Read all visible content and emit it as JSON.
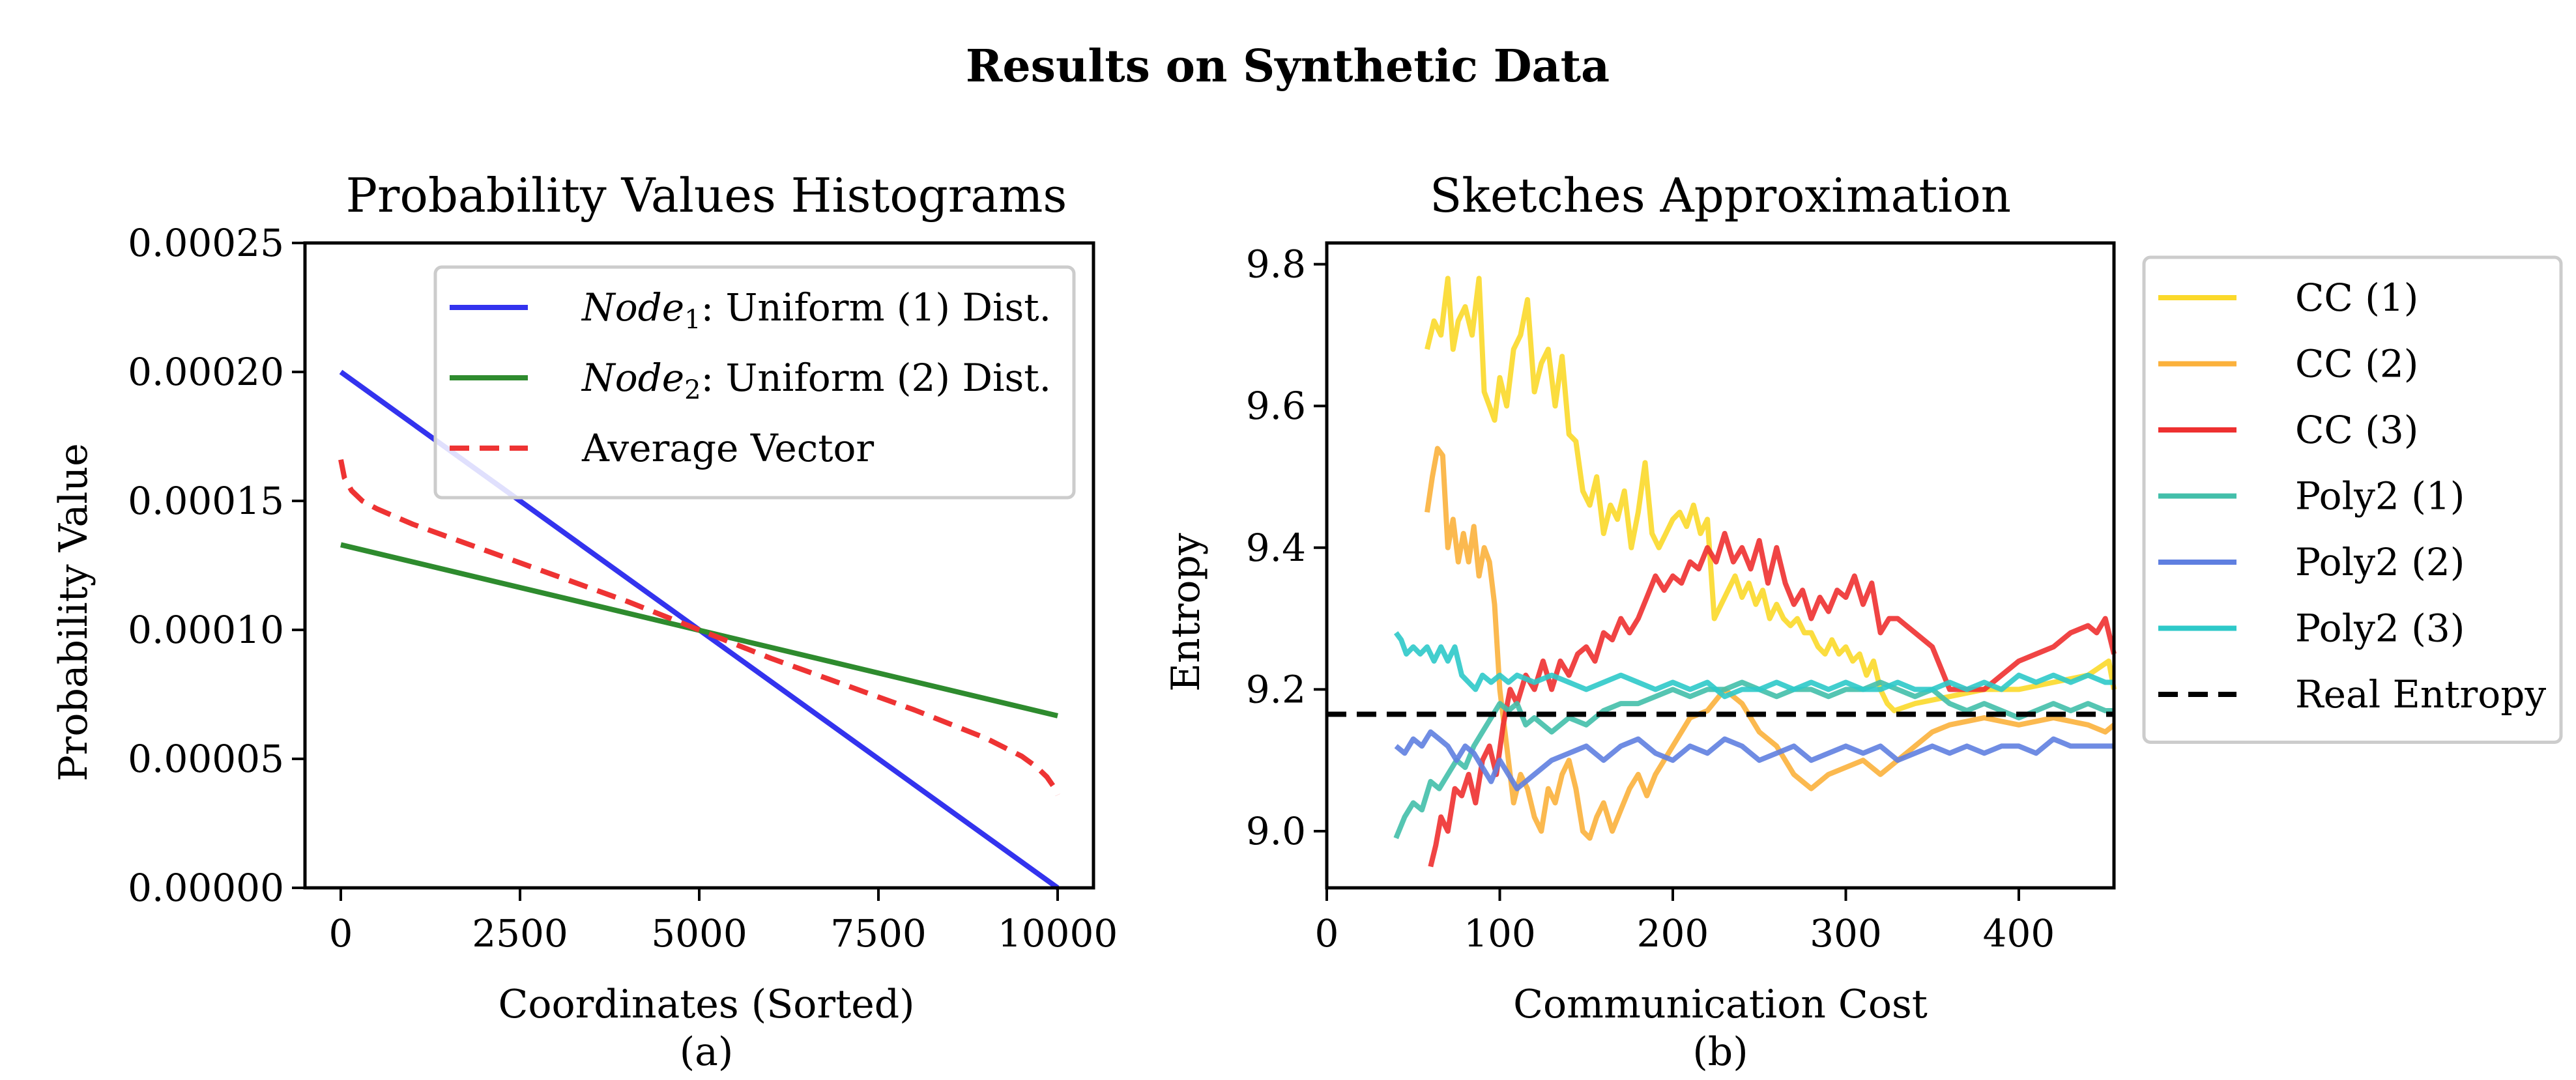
{
  "figure": {
    "suptitle": "Results on Synthetic Data"
  },
  "chart_data": [
    {
      "type": "line",
      "id": "a",
      "title": "Probability Values Histograms",
      "xlabel": "Coordinates (Sorted)",
      "ylabel": "Probability Value",
      "panel_label": "(a)",
      "xlim": [
        -500,
        10500
      ],
      "ylim": [
        0,
        0.00025
      ],
      "xticks": [
        0,
        2500,
        5000,
        7500,
        10000
      ],
      "xtick_labels": [
        "0",
        "2500",
        "5000",
        "7500",
        "10000"
      ],
      "yticks": [
        0,
        5e-05,
        0.0001,
        0.00015,
        0.0002,
        0.00025
      ],
      "ytick_labels": [
        "0.00000",
        "0.00005",
        "0.00010",
        "0.00015",
        "0.00020",
        "0.00025"
      ],
      "legend_position": "top-right",
      "series": [
        {
          "name": "Node₁: Uniform (1) Dist.",
          "legend_italic": "Node",
          "legend_sub": "1",
          "legend_rest": ": Uniform (1) Dist.",
          "color": "#3333ee",
          "dash": "solid",
          "x": [
            0,
            10000
          ],
          "y": [
            0.0002,
            0.0
          ]
        },
        {
          "name": "Node₂: Uniform (2) Dist.",
          "legend_italic": "Node",
          "legend_sub": "2",
          "legend_rest": ": Uniform (2) Dist.",
          "color": "#2e8b2e",
          "dash": "solid",
          "x": [
            0,
            10000
          ],
          "y": [
            0.000133,
            6.67e-05
          ]
        },
        {
          "name": "Average Vector",
          "legend_italic": "",
          "legend_sub": "",
          "legend_rest": "Average Vector",
          "color": "#ee3333",
          "dash": "dashed",
          "x": [
            0,
            50,
            150,
            300,
            500,
            1000,
            2000,
            3000,
            4000,
            5000,
            6000,
            7000,
            8000,
            9000,
            9500,
            9700,
            9850,
            9950,
            10000
          ],
          "y": [
            0.000166,
            0.000159,
            0.000154,
            0.00015,
            0.000147,
            0.000141,
            0.000131,
            0.000121,
            0.000111,
            0.0001,
            8.9e-05,
            7.9e-05,
            6.9e-05,
            5.8e-05,
            5.1e-05,
            4.7e-05,
            4.3e-05,
            3.9e-05,
            3.6e-05
          ]
        }
      ]
    },
    {
      "type": "line",
      "id": "b",
      "title": "Sketches Approximation",
      "xlabel": "Communication Cost",
      "ylabel": "Entropy",
      "panel_label": "(b)",
      "xlim": [
        0,
        455
      ],
      "ylim": [
        8.92,
        9.83
      ],
      "xticks": [
        0,
        100,
        200,
        300,
        400
      ],
      "xtick_labels": [
        "0",
        "100",
        "200",
        "300",
        "400"
      ],
      "yticks": [
        9.0,
        9.2,
        9.4,
        9.6,
        9.8
      ],
      "ytick_labels": [
        "9.0",
        "9.2",
        "9.4",
        "9.6",
        "9.8"
      ],
      "legend_position": "outside-right",
      "series": [
        {
          "name": "CC (1)",
          "color": "#fbd92a",
          "dash": "solid",
          "x": [
            58,
            62,
            66,
            70,
            73,
            76,
            80,
            84,
            88,
            91,
            94,
            97,
            100,
            104,
            108,
            112,
            116,
            120,
            124,
            128,
            132,
            136,
            140,
            144,
            148,
            152,
            156,
            160,
            164,
            168,
            172,
            176,
            180,
            184,
            188,
            192,
            196,
            200,
            204,
            208,
            212,
            216,
            220,
            224,
            228,
            232,
            236,
            240,
            244,
            248,
            252,
            256,
            260,
            264,
            268,
            272,
            276,
            280,
            284,
            288,
            292,
            296,
            300,
            304,
            308,
            312,
            316,
            320,
            324,
            328,
            340,
            360,
            380,
            400,
            420,
            440,
            452,
            455
          ],
          "y": [
            9.68,
            9.72,
            9.7,
            9.78,
            9.68,
            9.72,
            9.74,
            9.7,
            9.78,
            9.62,
            9.6,
            9.58,
            9.64,
            9.6,
            9.68,
            9.7,
            9.75,
            9.62,
            9.66,
            9.68,
            9.6,
            9.67,
            9.56,
            9.55,
            9.48,
            9.46,
            9.5,
            9.42,
            9.46,
            9.44,
            9.48,
            9.4,
            9.45,
            9.52,
            9.42,
            9.4,
            9.42,
            9.44,
            9.45,
            9.43,
            9.46,
            9.42,
            9.44,
            9.3,
            9.32,
            9.34,
            9.36,
            9.33,
            9.35,
            9.32,
            9.34,
            9.3,
            9.32,
            9.3,
            9.29,
            9.3,
            9.28,
            9.28,
            9.26,
            9.25,
            9.27,
            9.25,
            9.26,
            9.24,
            9.25,
            9.22,
            9.24,
            9.2,
            9.18,
            9.17,
            9.18,
            9.19,
            9.2,
            9.2,
            9.21,
            9.22,
            9.24,
            9.2
          ]
        },
        {
          "name": "CC (2)",
          "color": "#fbb13c",
          "dash": "solid",
          "x": [
            58,
            61,
            64,
            67,
            70,
            73,
            76,
            79,
            82,
            85,
            88,
            91,
            94,
            97,
            100,
            104,
            108,
            112,
            116,
            120,
            124,
            128,
            132,
            136,
            140,
            144,
            148,
            152,
            156,
            160,
            165,
            170,
            175,
            180,
            185,
            190,
            200,
            210,
            220,
            230,
            240,
            250,
            260,
            270,
            280,
            290,
            300,
            310,
            320,
            330,
            340,
            350,
            360,
            380,
            400,
            420,
            440,
            450,
            455
          ],
          "y": [
            9.45,
            9.5,
            9.54,
            9.53,
            9.4,
            9.44,
            9.38,
            9.42,
            9.38,
            9.43,
            9.36,
            9.4,
            9.38,
            9.32,
            9.2,
            9.12,
            9.04,
            9.08,
            9.06,
            9.02,
            9.0,
            9.06,
            9.04,
            9.08,
            9.1,
            9.06,
            9.0,
            8.99,
            9.02,
            9.04,
            9.0,
            9.03,
            9.06,
            9.08,
            9.05,
            9.08,
            9.12,
            9.16,
            9.17,
            9.2,
            9.18,
            9.14,
            9.12,
            9.08,
            9.06,
            9.08,
            9.09,
            9.1,
            9.08,
            9.1,
            9.12,
            9.14,
            9.15,
            9.16,
            9.15,
            9.16,
            9.15,
            9.14,
            9.15
          ]
        },
        {
          "name": "CC (3)",
          "color": "#ee3030",
          "dash": "solid",
          "x": [
            60,
            63,
            66,
            70,
            74,
            78,
            82,
            86,
            90,
            94,
            98,
            102,
            106,
            110,
            115,
            120,
            125,
            130,
            135,
            140,
            145,
            150,
            155,
            160,
            165,
            170,
            175,
            180,
            185,
            190,
            195,
            200,
            205,
            210,
            215,
            220,
            225,
            230,
            235,
            240,
            245,
            250,
            255,
            260,
            265,
            270,
            275,
            280,
            285,
            290,
            295,
            300,
            305,
            310,
            315,
            320,
            325,
            330,
            340,
            350,
            360,
            370,
            380,
            390,
            400,
            410,
            420,
            430,
            440,
            445,
            450,
            455
          ],
          "y": [
            8.95,
            8.98,
            9.02,
            9.0,
            9.06,
            9.05,
            9.08,
            9.04,
            9.1,
            9.12,
            9.08,
            9.15,
            9.2,
            9.18,
            9.22,
            9.2,
            9.24,
            9.2,
            9.24,
            9.22,
            9.25,
            9.26,
            9.24,
            9.28,
            9.27,
            9.3,
            9.28,
            9.3,
            9.33,
            9.36,
            9.34,
            9.36,
            9.35,
            9.38,
            9.37,
            9.4,
            9.38,
            9.42,
            9.38,
            9.4,
            9.37,
            9.41,
            9.35,
            9.4,
            9.35,
            9.32,
            9.34,
            9.3,
            9.33,
            9.31,
            9.34,
            9.33,
            9.36,
            9.32,
            9.35,
            9.28,
            9.3,
            9.3,
            9.28,
            9.26,
            9.2,
            9.2,
            9.2,
            9.22,
            9.24,
            9.25,
            9.26,
            9.28,
            9.29,
            9.28,
            9.3,
            9.25
          ]
        },
        {
          "name": "Poly2 (1)",
          "color": "#43bfaa",
          "dash": "solid",
          "x": [
            40,
            45,
            50,
            55,
            60,
            65,
            70,
            75,
            80,
            85,
            90,
            95,
            100,
            105,
            110,
            115,
            120,
            130,
            140,
            150,
            160,
            170,
            180,
            190,
            200,
            210,
            220,
            230,
            240,
            250,
            260,
            270,
            280,
            290,
            300,
            310,
            320,
            330,
            340,
            350,
            360,
            370,
            380,
            390,
            400,
            410,
            420,
            430,
            440,
            450,
            455
          ],
          "y": [
            8.99,
            9.02,
            9.04,
            9.03,
            9.07,
            9.06,
            9.08,
            9.1,
            9.09,
            9.12,
            9.14,
            9.16,
            9.18,
            9.17,
            9.18,
            9.15,
            9.16,
            9.14,
            9.16,
            9.15,
            9.17,
            9.18,
            9.18,
            9.19,
            9.2,
            9.19,
            9.2,
            9.2,
            9.21,
            9.2,
            9.19,
            9.2,
            9.2,
            9.19,
            9.2,
            9.2,
            9.21,
            9.2,
            9.19,
            9.2,
            9.18,
            9.17,
            9.18,
            9.17,
            9.16,
            9.17,
            9.18,
            9.17,
            9.18,
            9.17,
            9.17
          ]
        },
        {
          "name": "Poly2 (2)",
          "color": "#5f7fe0",
          "dash": "solid",
          "x": [
            40,
            45,
            50,
            55,
            60,
            65,
            70,
            75,
            80,
            85,
            90,
            95,
            100,
            105,
            110,
            115,
            120,
            130,
            140,
            150,
            160,
            170,
            180,
            190,
            200,
            210,
            220,
            230,
            240,
            250,
            260,
            270,
            280,
            290,
            300,
            310,
            320,
            330,
            340,
            350,
            360,
            370,
            380,
            390,
            400,
            410,
            420,
            430,
            440,
            450,
            455
          ],
          "y": [
            9.12,
            9.11,
            9.13,
            9.12,
            9.14,
            9.13,
            9.12,
            9.1,
            9.12,
            9.11,
            9.09,
            9.07,
            9.1,
            9.08,
            9.06,
            9.07,
            9.08,
            9.1,
            9.11,
            9.12,
            9.1,
            9.12,
            9.13,
            9.11,
            9.1,
            9.12,
            9.11,
            9.13,
            9.12,
            9.1,
            9.11,
            9.12,
            9.1,
            9.11,
            9.12,
            9.11,
            9.12,
            9.1,
            9.11,
            9.12,
            9.11,
            9.12,
            9.11,
            9.12,
            9.12,
            9.11,
            9.13,
            9.12,
            9.12,
            9.12,
            9.12
          ]
        },
        {
          "name": "Poly2 (3)",
          "color": "#2ec9c9",
          "dash": "solid",
          "x": [
            40,
            43,
            46,
            50,
            54,
            58,
            62,
            66,
            70,
            74,
            78,
            82,
            86,
            90,
            95,
            100,
            105,
            110,
            120,
            130,
            140,
            150,
            160,
            170,
            180,
            190,
            200,
            210,
            220,
            230,
            240,
            250,
            260,
            270,
            280,
            290,
            300,
            310,
            320,
            330,
            340,
            350,
            360,
            370,
            380,
            390,
            400,
            410,
            420,
            430,
            440,
            450,
            455
          ],
          "y": [
            9.28,
            9.27,
            9.25,
            9.26,
            9.25,
            9.26,
            9.24,
            9.26,
            9.24,
            9.26,
            9.22,
            9.21,
            9.2,
            9.22,
            9.21,
            9.22,
            9.21,
            9.22,
            9.21,
            9.22,
            9.21,
            9.2,
            9.21,
            9.22,
            9.21,
            9.2,
            9.21,
            9.2,
            9.21,
            9.19,
            9.2,
            9.2,
            9.21,
            9.2,
            9.21,
            9.2,
            9.21,
            9.2,
            9.2,
            9.21,
            9.2,
            9.2,
            9.21,
            9.2,
            9.21,
            9.2,
            9.22,
            9.21,
            9.22,
            9.21,
            9.22,
            9.21,
            9.21
          ]
        },
        {
          "name": "Real Entropy",
          "color": "#000000",
          "dash": "dashed",
          "x": [
            0,
            455
          ],
          "y": [
            9.165,
            9.165
          ]
        }
      ]
    }
  ]
}
